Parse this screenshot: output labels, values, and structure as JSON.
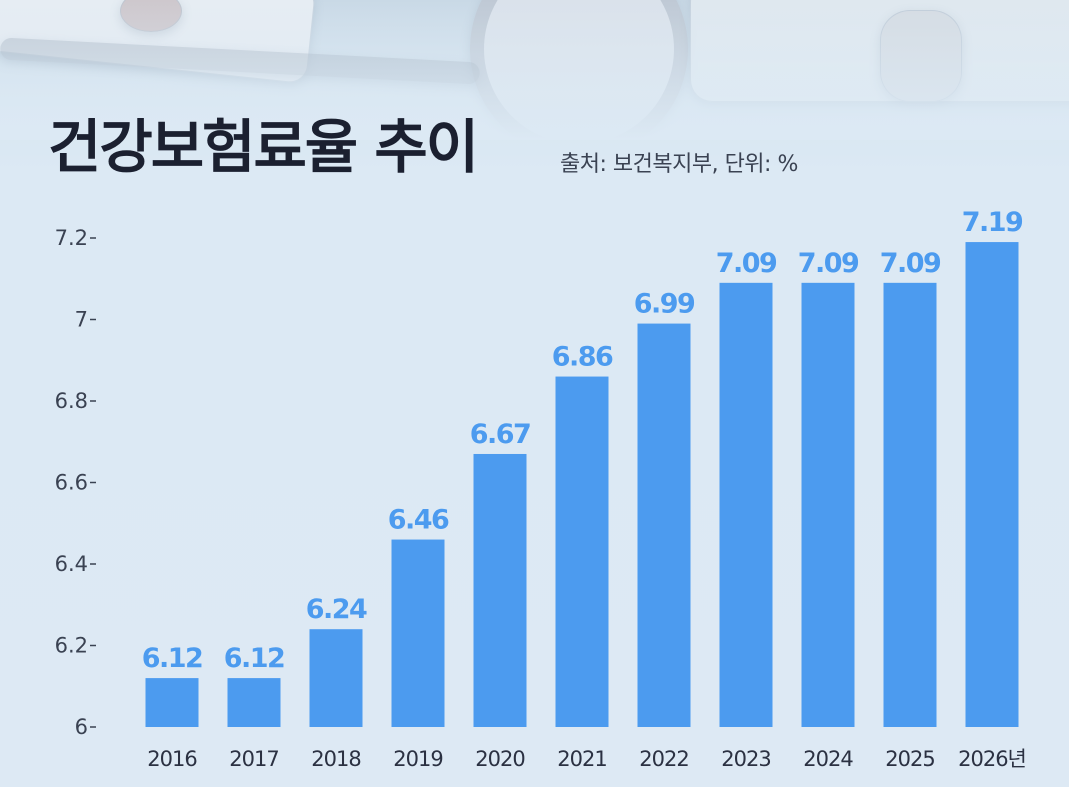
{
  "header": {
    "title": "건강보험료율 추이",
    "source": "출처: 보건복지부, 단위: %"
  },
  "chart_data": {
    "type": "bar",
    "title": "건강보험료율 추이",
    "subtitle": "출처: 보건복지부, 단위: %",
    "categories": [
      "2016",
      "2017",
      "2018",
      "2019",
      "2020",
      "2021",
      "2022",
      "2023",
      "2024",
      "2025",
      "2026년"
    ],
    "values": [
      6.12,
      6.12,
      6.24,
      6.46,
      6.67,
      6.86,
      6.99,
      7.09,
      7.09,
      7.09,
      7.19
    ],
    "data_labels": [
      "6.12",
      "6.12",
      "6.24",
      "6.46",
      "6.67",
      "6.86",
      "6.99",
      "7.09",
      "7.09",
      "7.09",
      "7.19"
    ],
    "y_ticks": [
      "6",
      "6.2",
      "6.4",
      "6.6",
      "6.8",
      "7",
      "7.2"
    ],
    "ylim": [
      6,
      7.2
    ],
    "xlabel": "",
    "ylabel": "",
    "grid": false,
    "bar_color": "#4c9bef",
    "label_color": "#4c9bef"
  }
}
